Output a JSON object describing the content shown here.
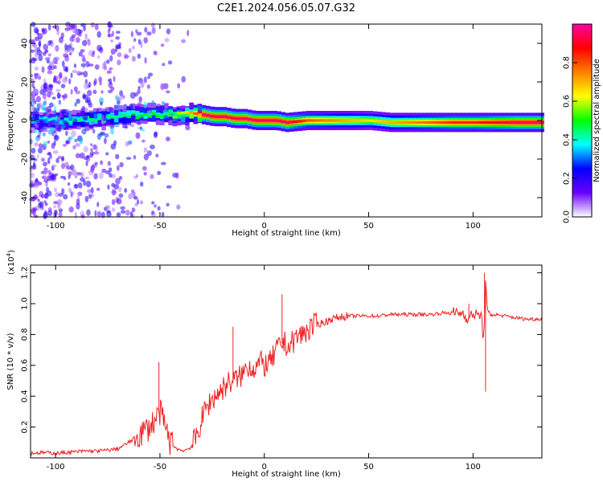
{
  "title": "C2E1.2024.056.05.07.G32",
  "chart_data": [
    {
      "type": "heatmap",
      "xlabel": "Height of straight line (km)",
      "ylabel": "Frequency (Hz)",
      "xlim": [
        -112,
        133
      ],
      "ylim": [
        -50,
        50
      ],
      "x_ticks": [
        -100,
        -50,
        0,
        50,
        100
      ],
      "x_tick_labels": [
        "-100",
        "-50",
        "0",
        "50",
        "100"
      ],
      "y_ticks": [
        -40,
        -20,
        0,
        20,
        40
      ],
      "y_tick_labels": [
        "-40",
        "-20",
        "0",
        "20",
        "40"
      ],
      "colorbar": {
        "label": "Normalized spectral amplitude",
        "range": [
          0,
          1
        ],
        "ticks": [
          0.0,
          0.2,
          0.4,
          0.6,
          0.8
        ],
        "tick_labels": [
          "0.0",
          "0.2",
          "0.4",
          "0.6",
          "0.8"
        ],
        "colors": [
          "#ffffff",
          "#6a00ff",
          "#0000ff",
          "#00ffff",
          "#00ff00",
          "#ffff00",
          "#ff8000",
          "#ff0000",
          "#ff00a0"
        ]
      },
      "ridge": {
        "x": [
          -112,
          -100,
          -90,
          -80,
          -70,
          -60,
          -50,
          -40,
          -35,
          -30,
          -25,
          -20,
          -15,
          -10,
          -5,
          0,
          5,
          10,
          20,
          30,
          40,
          50,
          60,
          70,
          80,
          90,
          100,
          110,
          120,
          133
        ],
        "frequency": [
          0,
          0,
          0,
          1,
          2,
          3,
          3,
          3,
          3,
          3,
          2,
          2,
          1,
          1,
          0,
          0,
          0,
          -1,
          0,
          0,
          0,
          0,
          -1,
          -1,
          -1,
          -1,
          -1,
          -1,
          -1,
          -1
        ],
        "amplitude": [
          0.35,
          0.4,
          0.45,
          0.45,
          0.45,
          0.5,
          0.5,
          0.6,
          0.75,
          0.95,
          0.95,
          0.95,
          0.95,
          0.95,
          0.95,
          0.95,
          0.95,
          0.95,
          0.8,
          0.75,
          0.7,
          0.65,
          0.7,
          0.75,
          0.8,
          0.85,
          0.85,
          0.9,
          0.95,
          0.95
        ]
      }
    },
    {
      "type": "line",
      "xlabel": "Height of straight line (km)",
      "ylabel": "SNR (10 * v/v)",
      "y_scale_label": "(x10",
      "y_scale_exponent": "4",
      "xlim": [
        -112,
        133
      ],
      "ylim": [
        0,
        1.25
      ],
      "x_ticks": [
        -100,
        -50,
        0,
        50,
        100
      ],
      "x_tick_labels": [
        "-100",
        "-50",
        "0",
        "50",
        "100"
      ],
      "y_ticks": [
        0.2,
        0.4,
        0.6,
        0.8,
        1.0,
        1.2
      ],
      "y_tick_labels": [
        "0.2",
        "0.4",
        "0.6",
        "0.8",
        "1.0",
        "1.2"
      ],
      "line_color": "#ee2222",
      "series": [
        {
          "x": [
            -112,
            -105,
            -100,
            -95,
            -90,
            -85,
            -80,
            -75,
            -70,
            -65,
            -60,
            -55,
            -52,
            -50,
            -48,
            -45,
            -42,
            -40,
            -38,
            -35,
            -32,
            -30,
            -28,
            -25,
            -22,
            -20,
            -18,
            -15,
            -12,
            -10,
            -8,
            -5,
            -2,
            0,
            3,
            6,
            9,
            12,
            15,
            18,
            20,
            23,
            26,
            29,
            32,
            35,
            40,
            45,
            50,
            55,
            60,
            65,
            70,
            75,
            80,
            85,
            90,
            95,
            98,
            100,
            102,
            104,
            105,
            106,
            107,
            110,
            115,
            120,
            125,
            133
          ],
          "values": [
            0.03,
            0.035,
            0.03,
            0.035,
            0.04,
            0.045,
            0.045,
            0.05,
            0.06,
            0.1,
            0.15,
            0.2,
            0.25,
            0.3,
            0.22,
            0.1,
            0.06,
            0.05,
            0.05,
            0.07,
            0.15,
            0.25,
            0.32,
            0.38,
            0.42,
            0.45,
            0.48,
            0.5,
            0.52,
            0.55,
            0.6,
            0.58,
            0.62,
            0.6,
            0.62,
            0.7,
            0.75,
            0.72,
            0.78,
            0.8,
            0.82,
            0.85,
            0.87,
            0.88,
            0.9,
            0.91,
            0.92,
            0.92,
            0.92,
            0.92,
            0.93,
            0.93,
            0.93,
            0.93,
            0.93,
            0.94,
            0.94,
            0.94,
            0.9,
            0.94,
            0.92,
            0.93,
            0.75,
            1.15,
            0.92,
            0.93,
            0.92,
            0.91,
            0.9,
            0.9
          ]
        }
      ],
      "spikes": [
        {
          "x": -50.5,
          "value": 0.62
        },
        {
          "x": -15,
          "value": 0.85
        },
        {
          "x": 8.5,
          "value": 1.06
        },
        {
          "x": 98,
          "value": 1.0
        },
        {
          "x": 105.5,
          "value": 1.2
        },
        {
          "x": 106,
          "value": 0.43
        }
      ]
    }
  ]
}
